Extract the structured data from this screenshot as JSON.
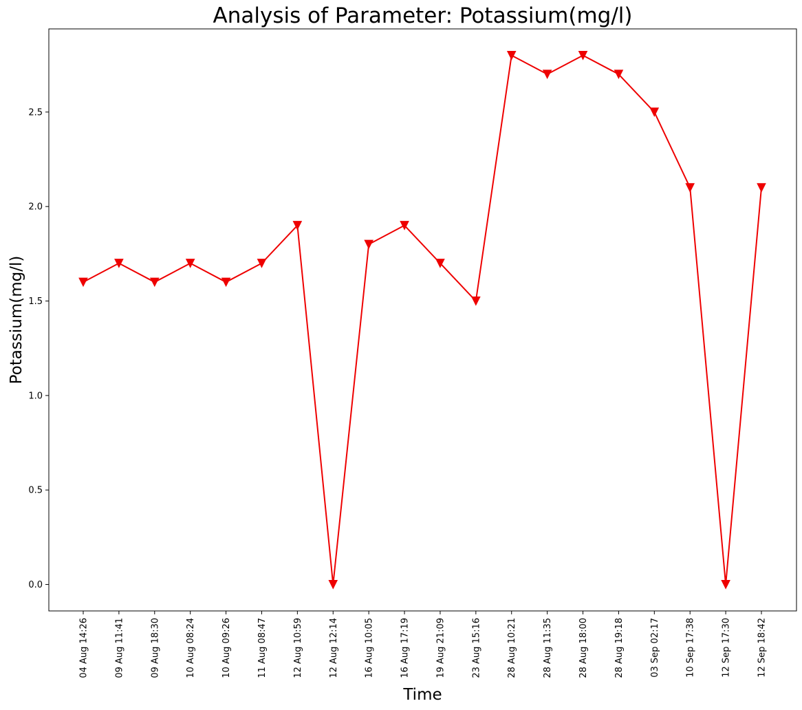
{
  "chart_data": {
    "type": "line",
    "title": "Analysis of Parameter: Potassium(mg/l)",
    "xlabel": "Time",
    "ylabel": "Potassium(mg/l)",
    "ylim": [
      -0.14,
      2.94
    ],
    "yticks": [
      "0.0",
      "0.5",
      "1.0",
      "1.5",
      "2.0",
      "2.5"
    ],
    "grid": false,
    "color": "#ee0000",
    "marker": "triangle-down",
    "categories": [
      "04 Aug 14:26",
      "09 Aug 11:41",
      "09 Aug 18:30",
      "10 Aug 08:24",
      "10 Aug 09:26",
      "11 Aug 08:47",
      "12 Aug 10:59",
      "12 Aug 12:14",
      "16 Aug 10:05",
      "16 Aug 17:19",
      "19 Aug 21:09",
      "23 Aug 15:16",
      "28 Aug 10:21",
      "28 Aug 11:35",
      "28 Aug 18:00",
      "28 Aug 19:18",
      "03 Sep 02:17",
      "10 Sep 17:38",
      "12 Sep 17:30",
      "12 Sep 18:42"
    ],
    "values": [
      1.6,
      1.7,
      1.6,
      1.7,
      1.6,
      1.7,
      1.9,
      0.0,
      1.8,
      1.9,
      1.7,
      1.5,
      2.8,
      2.7,
      2.8,
      2.7,
      2.5,
      2.1,
      0.0,
      2.1
    ]
  }
}
